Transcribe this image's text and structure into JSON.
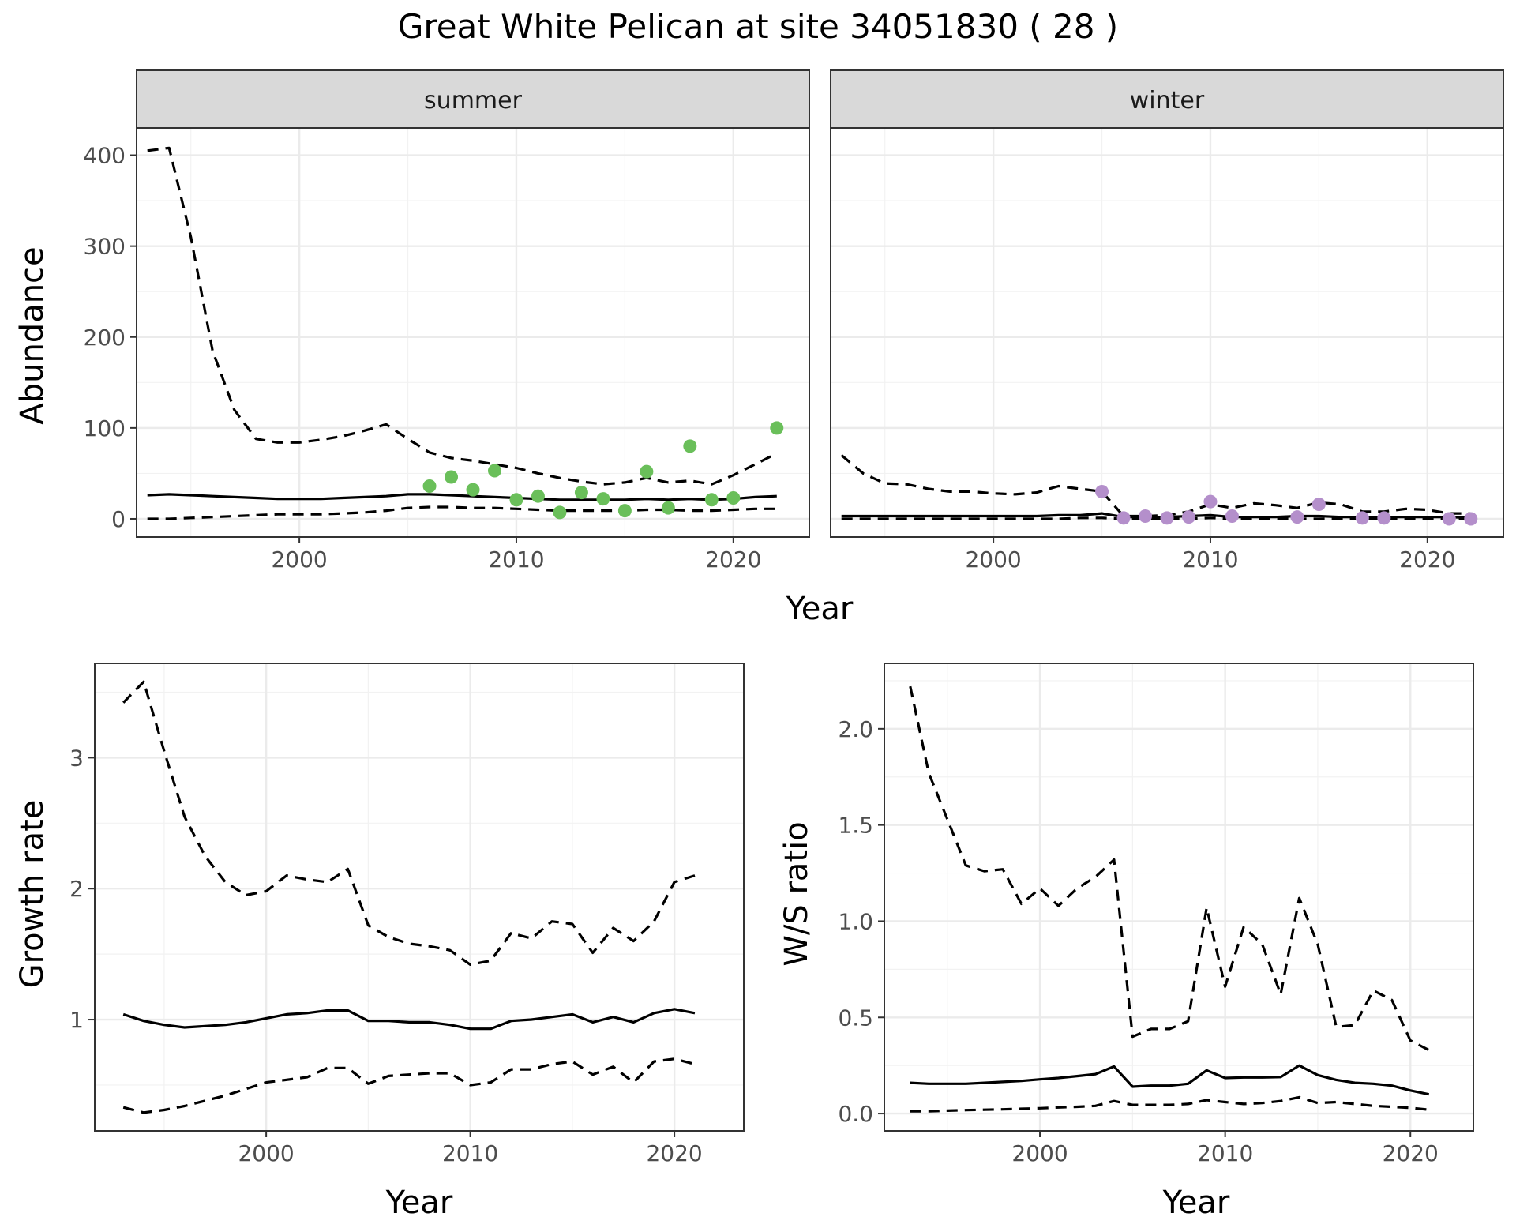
{
  "title": "Great White Pelican at site 34051830 ( 28 )",
  "colors": {
    "summer_points": "#6abf5a",
    "winter_points": "#b48fcb",
    "lines": "#000000"
  },
  "chart_data": [
    {
      "id": "abundance",
      "type": "line",
      "ylabel": "Abundance",
      "xlabel": "Year",
      "facets": [
        "summer",
        "winter"
      ],
      "xlim": [
        1992.5,
        2023.5
      ],
      "ylim": [
        -20,
        430
      ],
      "xticks": [
        2000,
        2010,
        2020
      ],
      "yticks": [
        0,
        100,
        200,
        300,
        400
      ],
      "panels": [
        {
          "facet": "summer",
          "x": [
            1993,
            1994,
            1995,
            1996,
            1997,
            1998,
            1999,
            2000,
            2001,
            2002,
            2003,
            2004,
            2005,
            2006,
            2007,
            2008,
            2009,
            2010,
            2011,
            2012,
            2013,
            2014,
            2015,
            2016,
            2017,
            2018,
            2019,
            2020,
            2021,
            2022
          ],
          "estimate": [
            26,
            27,
            26,
            25,
            24,
            23,
            22,
            22,
            22,
            23,
            24,
            25,
            27,
            27,
            26,
            25,
            24,
            23,
            22,
            21,
            21,
            21,
            21,
            22,
            21,
            22,
            21,
            22,
            24,
            25
          ],
          "upper": [
            405,
            408,
            310,
            185,
            120,
            88,
            84,
            84,
            87,
            91,
            97,
            104,
            88,
            73,
            67,
            64,
            60,
            56,
            50,
            45,
            41,
            38,
            40,
            45,
            40,
            42,
            38,
            48,
            60,
            72
          ],
          "lower": [
            0,
            0,
            1,
            2,
            3,
            4,
            5,
            5,
            5,
            6,
            7,
            9,
            12,
            13,
            13,
            12,
            12,
            11,
            10,
            9,
            9,
            9,
            9,
            10,
            10,
            9,
            9,
            10,
            11,
            11
          ],
          "points": [
            {
              "x": 2006,
              "y": 36
            },
            {
              "x": 2007,
              "y": 46
            },
            {
              "x": 2008,
              "y": 32
            },
            {
              "x": 2009,
              "y": 53
            },
            {
              "x": 2010,
              "y": 21
            },
            {
              "x": 2011,
              "y": 25
            },
            {
              "x": 2012,
              "y": 7
            },
            {
              "x": 2013,
              "y": 29
            },
            {
              "x": 2014,
              "y": 22
            },
            {
              "x": 2015,
              "y": 9
            },
            {
              "x": 2016,
              "y": 52
            },
            {
              "x": 2017,
              "y": 12
            },
            {
              "x": 2018,
              "y": 80
            },
            {
              "x": 2019,
              "y": 21
            },
            {
              "x": 2020,
              "y": 23
            },
            {
              "x": 2022,
              "y": 100
            }
          ]
        },
        {
          "facet": "winter",
          "x": [
            1993,
            1994,
            1995,
            1996,
            1997,
            1998,
            1999,
            2000,
            2001,
            2002,
            2003,
            2004,
            2005,
            2006,
            2007,
            2008,
            2009,
            2010,
            2011,
            2012,
            2013,
            2014,
            2015,
            2016,
            2017,
            2018,
            2019,
            2020,
            2021,
            2022
          ],
          "estimate": [
            3,
            3,
            3,
            3,
            3,
            3,
            3,
            3,
            3,
            3,
            4,
            4,
            6,
            2,
            2,
            2,
            3,
            4,
            2,
            2,
            2,
            3,
            3,
            2,
            2,
            2,
            2,
            2,
            2,
            1
          ],
          "upper": [
            70,
            50,
            39,
            38,
            33,
            30,
            30,
            28,
            27,
            29,
            36,
            33,
            30,
            3,
            3,
            4,
            8,
            16,
            12,
            17,
            15,
            12,
            18,
            16,
            8,
            8,
            11,
            10,
            6,
            6
          ],
          "lower": [
            0,
            0,
            0,
            0,
            0,
            0,
            0,
            0,
            0,
            0,
            0,
            1,
            1,
            0,
            0,
            0,
            0,
            1,
            0,
            0,
            0,
            0,
            0,
            0,
            0,
            0,
            0,
            0,
            0,
            0
          ],
          "points": [
            {
              "x": 2005,
              "y": 30
            },
            {
              "x": 2006,
              "y": 1
            },
            {
              "x": 2007,
              "y": 3
            },
            {
              "x": 2008,
              "y": 1
            },
            {
              "x": 2009,
              "y": 2
            },
            {
              "x": 2010,
              "y": 19
            },
            {
              "x": 2011,
              "y": 3
            },
            {
              "x": 2014,
              "y": 2
            },
            {
              "x": 2015,
              "y": 16
            },
            {
              "x": 2017,
              "y": 1
            },
            {
              "x": 2018,
              "y": 1
            },
            {
              "x": 2021,
              "y": 0
            },
            {
              "x": 2022,
              "y": 0
            }
          ]
        }
      ]
    },
    {
      "id": "growth",
      "type": "line",
      "ylabel": "Growth rate",
      "xlabel": "Year",
      "xlim": [
        1991.6,
        2023.4
      ],
      "ylim": [
        0.15,
        3.72
      ],
      "xticks": [
        2000,
        2010,
        2020
      ],
      "yticks": [
        1,
        2,
        3
      ],
      "x": [
        1993,
        1994,
        1995,
        1996,
        1997,
        1998,
        1999,
        2000,
        2001,
        2002,
        2003,
        2004,
        2005,
        2006,
        2007,
        2008,
        2009,
        2010,
        2011,
        2012,
        2013,
        2014,
        2015,
        2016,
        2017,
        2018,
        2019,
        2020,
        2021
      ],
      "estimate": [
        1.04,
        0.99,
        0.96,
        0.94,
        0.95,
        0.96,
        0.98,
        1.01,
        1.04,
        1.05,
        1.07,
        1.07,
        0.99,
        0.99,
        0.98,
        0.98,
        0.96,
        0.93,
        0.93,
        0.99,
        1.0,
        1.02,
        1.04,
        0.98,
        1.02,
        0.98,
        1.05,
        1.08,
        1.05
      ],
      "upper": [
        3.42,
        3.58,
        3.05,
        2.55,
        2.25,
        2.05,
        1.95,
        1.98,
        2.1,
        2.07,
        2.05,
        2.15,
        1.72,
        1.63,
        1.58,
        1.56,
        1.53,
        1.42,
        1.45,
        1.66,
        1.62,
        1.75,
        1.73,
        1.51,
        1.7,
        1.6,
        1.75,
        2.05,
        2.1
      ],
      "lower": [
        0.33,
        0.29,
        0.31,
        0.34,
        0.38,
        0.42,
        0.47,
        0.52,
        0.54,
        0.56,
        0.63,
        0.63,
        0.51,
        0.57,
        0.58,
        0.59,
        0.59,
        0.5,
        0.52,
        0.62,
        0.62,
        0.66,
        0.68,
        0.58,
        0.64,
        0.52,
        0.68,
        0.7,
        0.66
      ]
    },
    {
      "id": "ratio",
      "type": "line",
      "ylabel": "W/S ratio",
      "xlabel": "Year",
      "xlim": [
        1991.6,
        2023.4
      ],
      "ylim": [
        -0.09,
        2.34
      ],
      "xticks": [
        2000,
        2010,
        2020
      ],
      "yticks": [
        0.0,
        0.5,
        1.0,
        1.5,
        2.0
      ],
      "ytick_labels": [
        "0.0",
        "0.5",
        "1.0",
        "1.5",
        "2.0"
      ],
      "x": [
        1993,
        1994,
        1995,
        1996,
        1997,
        1998,
        1999,
        2000,
        2001,
        2002,
        2003,
        2004,
        2005,
        2006,
        2007,
        2008,
        2009,
        2010,
        2011,
        2012,
        2013,
        2014,
        2015,
        2016,
        2017,
        2018,
        2019,
        2020,
        2021
      ],
      "estimate": [
        0.16,
        0.155,
        0.155,
        0.155,
        0.16,
        0.165,
        0.17,
        0.178,
        0.185,
        0.195,
        0.205,
        0.245,
        0.14,
        0.145,
        0.145,
        0.155,
        0.225,
        0.185,
        0.188,
        0.188,
        0.19,
        0.25,
        0.2,
        0.175,
        0.16,
        0.155,
        0.145,
        0.12,
        0.1
      ],
      "upper": [
        2.22,
        1.77,
        1.53,
        1.29,
        1.26,
        1.27,
        1.09,
        1.17,
        1.08,
        1.17,
        1.23,
        1.32,
        0.4,
        0.44,
        0.44,
        0.48,
        1.07,
        0.66,
        0.97,
        0.88,
        0.62,
        1.12,
        0.88,
        0.45,
        0.46,
        0.64,
        0.59,
        0.38,
        0.33
      ],
      "lower": [
        0.012,
        0.012,
        0.015,
        0.018,
        0.02,
        0.022,
        0.025,
        0.028,
        0.032,
        0.035,
        0.04,
        0.065,
        0.045,
        0.045,
        0.045,
        0.05,
        0.07,
        0.06,
        0.05,
        0.055,
        0.065,
        0.085,
        0.055,
        0.06,
        0.05,
        0.04,
        0.035,
        0.03,
        0.02
      ]
    }
  ]
}
